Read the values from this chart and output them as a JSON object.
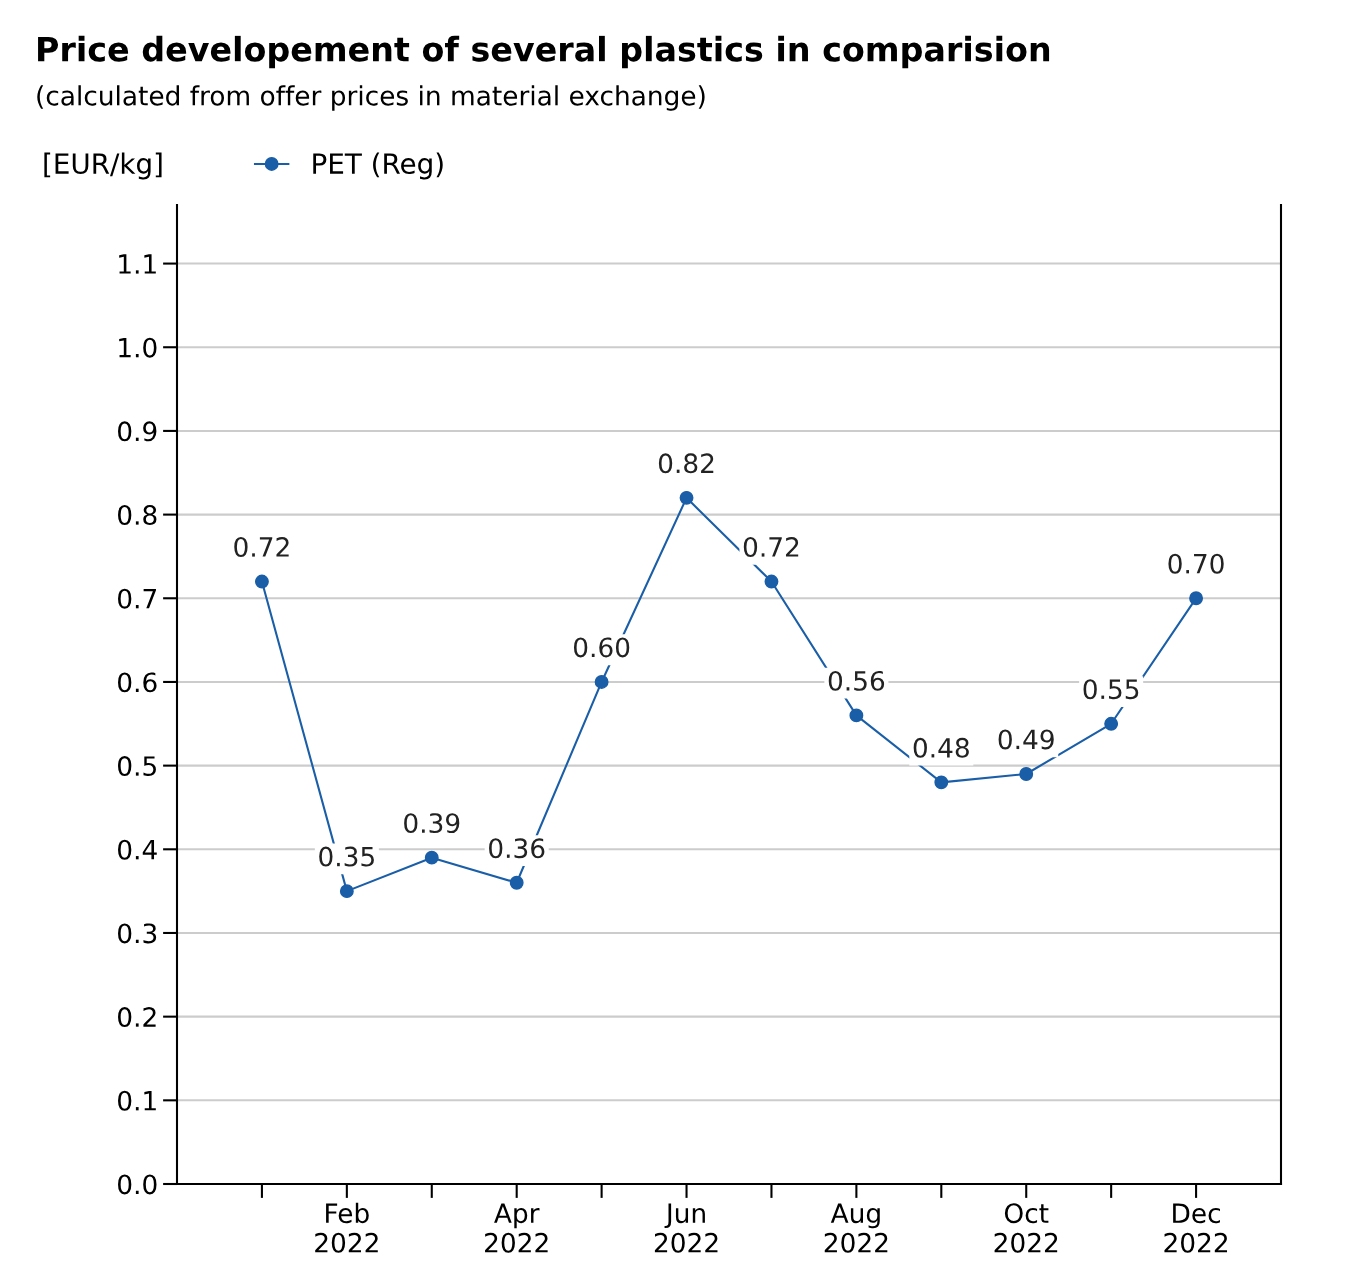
{
  "chart_data": {
    "type": "line",
    "title": "Price developement of several plastics in comparision",
    "subtitle": "(calculated from offer prices in material exchange)",
    "ylabel": "[EUR/kg]",
    "categories": [
      null,
      "Feb\n2022",
      null,
      "Apr\n2022",
      null,
      "Jun\n2022",
      null,
      "Aug\n2022",
      null,
      "Oct\n2022",
      null,
      "Dec\n2022"
    ],
    "series": [
      {
        "name": "PET (Reg)",
        "color": "#1a5ea8",
        "values": [
          0.72,
          0.35,
          0.39,
          0.36,
          0.6,
          0.82,
          0.72,
          0.56,
          0.48,
          0.49,
          0.55,
          0.7
        ],
        "value_labels": [
          "0.72",
          "0.35",
          "0.39",
          "0.36",
          "0.60",
          "0.82",
          "0.72",
          "0.56",
          "0.48",
          "0.49",
          "0.55",
          "0.70"
        ]
      }
    ],
    "ylim": [
      0,
      1.17
    ],
    "yticks": [
      {
        "value": 0,
        "label": "0.0"
      },
      0.1,
      0.2,
      0.3,
      0.4,
      0.5,
      0.6,
      0.7,
      0.8,
      0.9,
      {
        "value": 1.0,
        "label": "1.0"
      },
      1.1
    ],
    "grid": "y",
    "legend": "top left",
    "marker": "circle",
    "line_style": "solid"
  }
}
